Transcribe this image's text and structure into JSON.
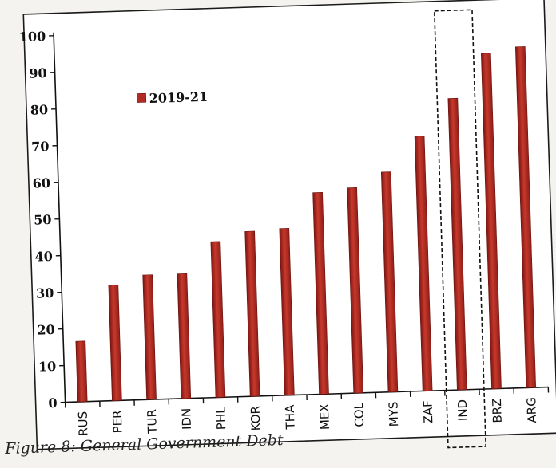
{
  "chart_data": {
    "type": "bar",
    "categories": [
      "RUS",
      "PER",
      "TUR",
      "IDN",
      "PHL",
      "KOR",
      "THA",
      "MEX",
      "COL",
      "MYS",
      "ZAF",
      "IND",
      "BRZ",
      "ARG"
    ],
    "series": [
      {
        "name": "2019-21",
        "values": [
          16.5,
          31.5,
          34,
          34,
          42.5,
          45,
          45.5,
          55,
          56,
          60,
          69.5,
          79.5,
          91.5,
          93
        ]
      }
    ],
    "ylim": [
      0,
      100
    ],
    "yticks": [
      0,
      10,
      20,
      30,
      40,
      50,
      60,
      70,
      80,
      90,
      100
    ],
    "highlighted_category": "IND",
    "legend_position": "upper-left",
    "bar_color": "#b22a22",
    "grid": false
  },
  "caption": "Figure 8: General Government Debt"
}
